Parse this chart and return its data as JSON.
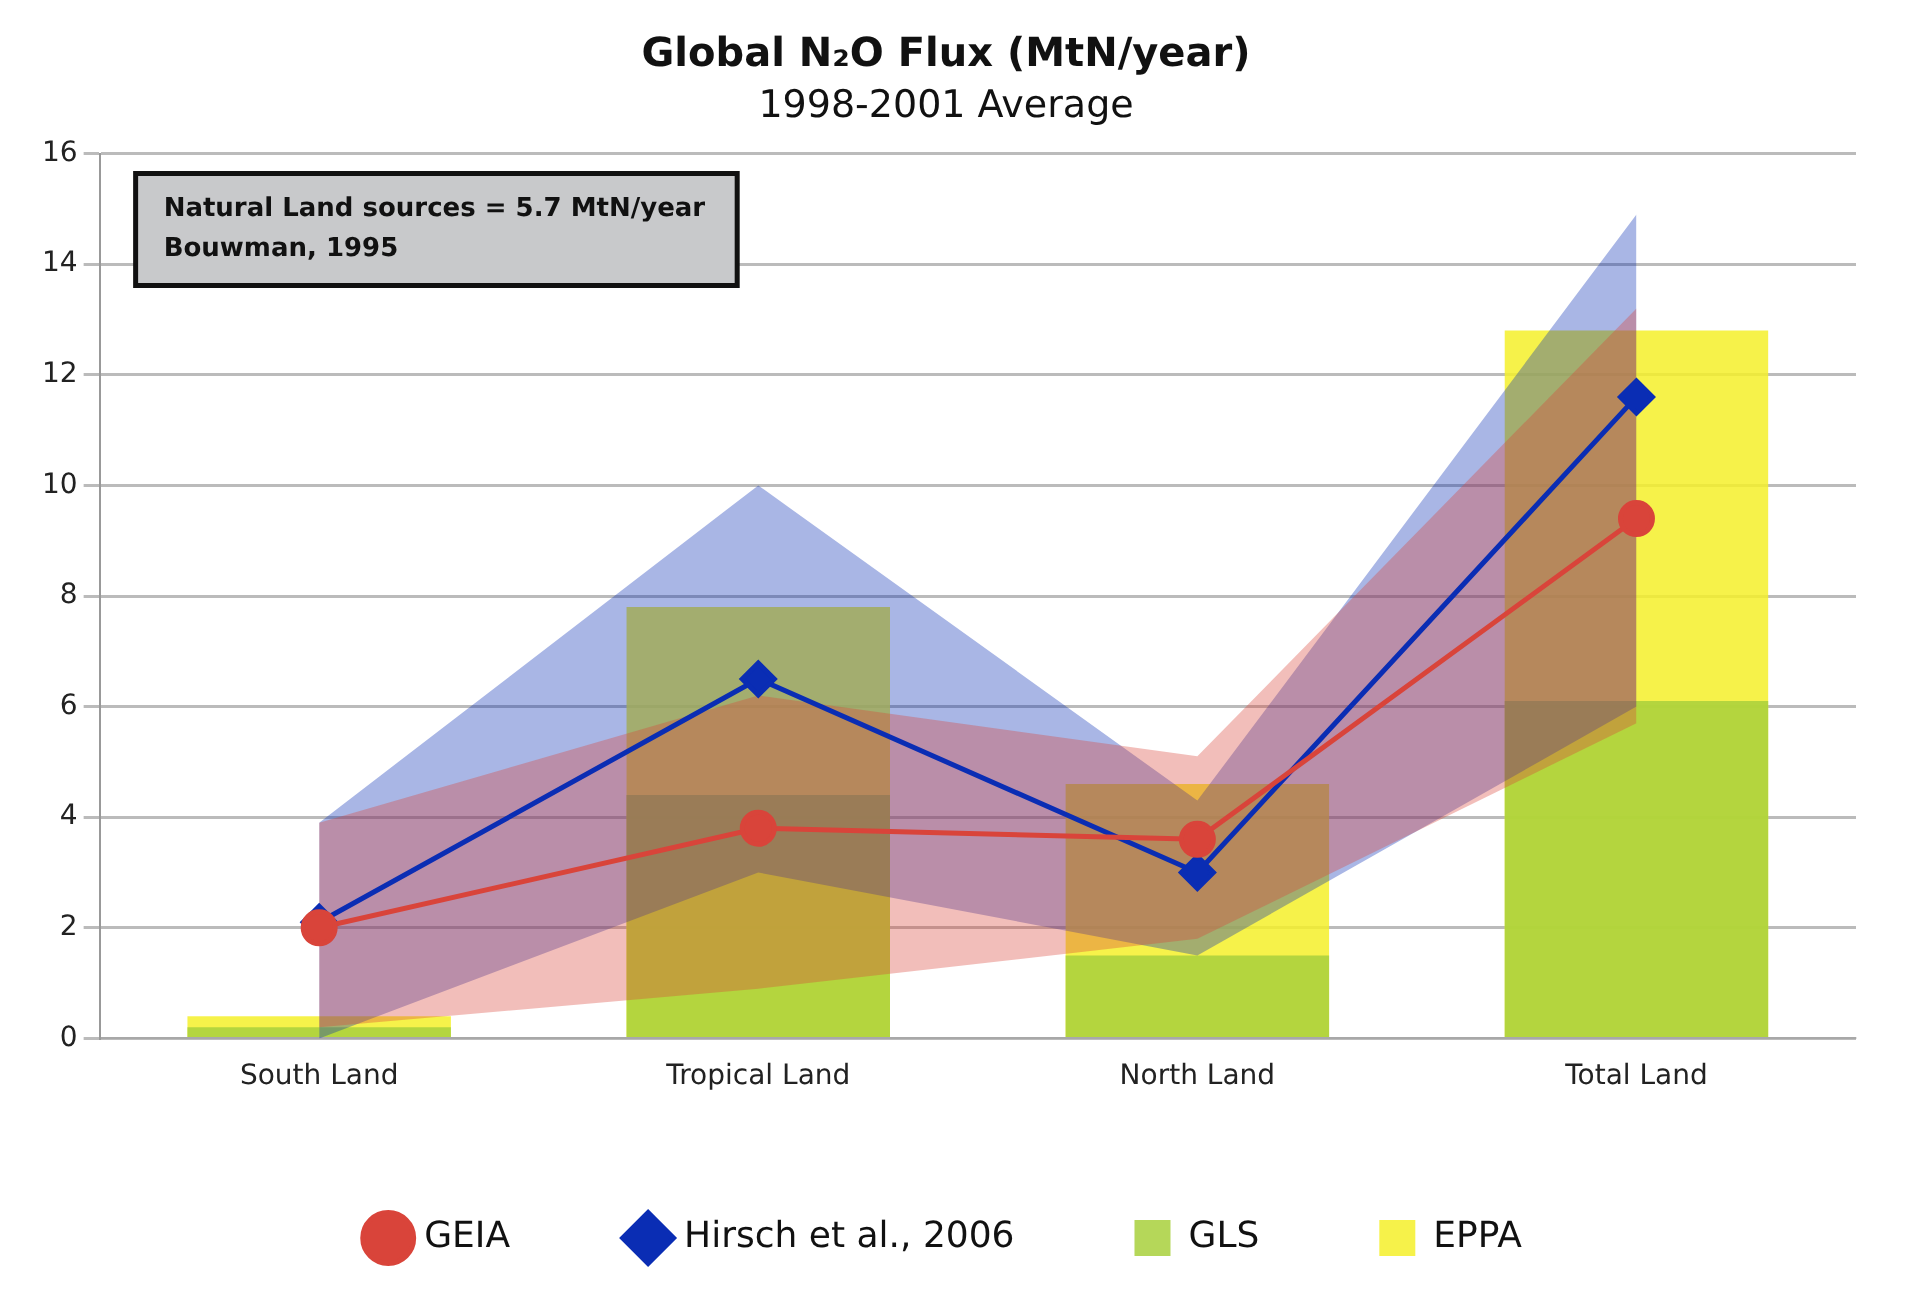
{
  "chart_data": {
    "type": "bar",
    "title": "Global N₂O Flux (MtN/year)",
    "subtitle": "1998-2001 Average",
    "categories": [
      "South Land",
      "Tropical Land",
      "North Land",
      "Total Land"
    ],
    "series": [
      {
        "name": "GEIA",
        "type": "line",
        "color": "#d9443a",
        "marker": "circle",
        "values": [
          2.0,
          3.8,
          3.6,
          9.4
        ],
        "lower": [
          0.2,
          0.9,
          1.8,
          5.7
        ],
        "upper": [
          3.9,
          6.2,
          5.1,
          13.2
        ]
      },
      {
        "name": "Hirsch et al., 2006",
        "type": "line",
        "color": "#0a2db4",
        "marker": "diamond",
        "values": [
          2.1,
          6.5,
          3.0,
          11.6
        ],
        "lower": [
          0.0,
          3.0,
          1.5,
          6.0
        ],
        "upper": [
          3.9,
          10.0,
          4.3,
          14.9
        ]
      },
      {
        "name": "GLS",
        "color": "#a8d03c",
        "values": [
          0.2,
          4.4,
          1.5,
          6.1
        ]
      },
      {
        "name": "EPPA",
        "color": "#f4f02a",
        "values": [
          0.4,
          7.8,
          4.6,
          12.8
        ]
      }
    ],
    "ylim": [
      0,
      16
    ],
    "yticks": [
      0,
      2,
      4,
      6,
      8,
      10,
      12,
      14,
      16
    ],
    "grid": "y",
    "legend": "bottom",
    "annotations": [
      "Natural Land sources = 5.7 MtN/year",
      "Bouwman, 1995"
    ]
  }
}
